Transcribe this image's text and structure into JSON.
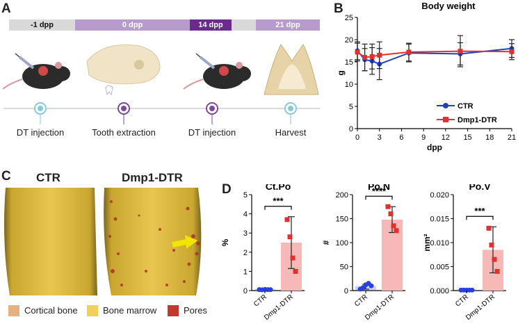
{
  "panels": {
    "a": "A",
    "b": "B",
    "c": "C",
    "d": "D"
  },
  "timeline": {
    "segments": [
      {
        "label": "-1 dpp",
        "color": "#d9d9d9",
        "text_color": "#111111"
      },
      {
        "label": "0 dpp",
        "color": "#b79bcc",
        "text_color": "#ffffff"
      },
      {
        "label": "14 dpp",
        "color": "#6a2c8c",
        "text_color": "#ffffff"
      },
      {
        "label": "21 dpp",
        "color": "#b79bcc",
        "text_color": "#ffffff"
      }
    ],
    "events": [
      "DT injection",
      "Tooth extraction",
      "DT injection",
      "Harvest"
    ]
  },
  "panel_c": {
    "titles": [
      "CTR",
      "Dmp1-DTR"
    ],
    "legend": [
      {
        "label": "Cortical bone",
        "color": "#e8b07f"
      },
      {
        "label": "Bone marrow",
        "color": "#f3cf5a"
      },
      {
        "label": "Pores",
        "color": "#c0392b"
      }
    ]
  },
  "chart_data": [
    {
      "type": "line",
      "title": "Body weight",
      "xlabel": "dpp",
      "ylabel": "g",
      "xlim": [
        0,
        21
      ],
      "ylim": [
        0,
        25
      ],
      "xticks": [
        0,
        3,
        6,
        9,
        12,
        15,
        18,
        21
      ],
      "yticks": [
        0,
        5,
        10,
        15,
        20,
        25
      ],
      "series": [
        {
          "name": "CTR",
          "color": "#1f3fbf",
          "marker": "circle",
          "x": [
            0,
            1,
            2,
            3,
            7,
            14,
            21
          ],
          "y": [
            17.5,
            15.5,
            15.2,
            14.5,
            17.0,
            16.8,
            18.0
          ],
          "err": [
            2.0,
            2.5,
            3.0,
            3.5,
            2.0,
            2.5,
            2.0
          ]
        },
        {
          "name": "Dmp1-DTR",
          "color": "#e03030",
          "marker": "square",
          "x": [
            0,
            1,
            2,
            3,
            7,
            14,
            21
          ],
          "y": [
            17.2,
            16.0,
            16.2,
            16.5,
            17.2,
            17.4,
            17.3
          ],
          "err": [
            2.0,
            3.0,
            2.8,
            3.0,
            2.0,
            3.5,
            1.8
          ]
        }
      ]
    },
    {
      "type": "bar",
      "title": "Ct.Po",
      "ylabel": "%",
      "categories": [
        "CTR",
        "Dmp1-DTR"
      ],
      "values": [
        0.05,
        2.5
      ],
      "err": [
        0.03,
        1.35
      ],
      "ylim": [
        0,
        5
      ],
      "yticks": [
        0,
        1,
        2,
        3,
        4,
        5
      ],
      "points": [
        [
          0.05,
          0.04,
          0.06,
          0.05,
          0.05
        ],
        [
          3.7,
          2.8,
          1.7,
          1.0
        ]
      ],
      "significance": "***"
    },
    {
      "type": "bar",
      "title": "Po.N",
      "ylabel": "#",
      "categories": [
        "CTR",
        "Dmp1-DTR"
      ],
      "values": [
        8,
        148
      ],
      "err": [
        5,
        27
      ],
      "ylim": [
        0,
        200
      ],
      "yticks": [
        0,
        50,
        100,
        150,
        200
      ],
      "points": [
        [
          3,
          6,
          12,
          15,
          10
        ],
        [
          175,
          160,
          135,
          125
        ]
      ],
      "significance": "****"
    },
    {
      "type": "bar",
      "title": "Po.V",
      "ylabel": "mm²",
      "categories": [
        "CTR",
        "Dmp1-DTR"
      ],
      "values": [
        0.0001,
        0.0085
      ],
      "err": [
        0.0001,
        0.0048
      ],
      "ylim": [
        0,
        0.02
      ],
      "yticks": [
        "0.000",
        "0.005",
        "0.010",
        "0.015",
        "0.020"
      ],
      "points": [
        [
          0.0001,
          0.0001,
          0.0001,
          0.0001,
          0.0001
        ],
        [
          0.013,
          0.0095,
          0.0065,
          0.004
        ]
      ],
      "significance": "***"
    }
  ]
}
